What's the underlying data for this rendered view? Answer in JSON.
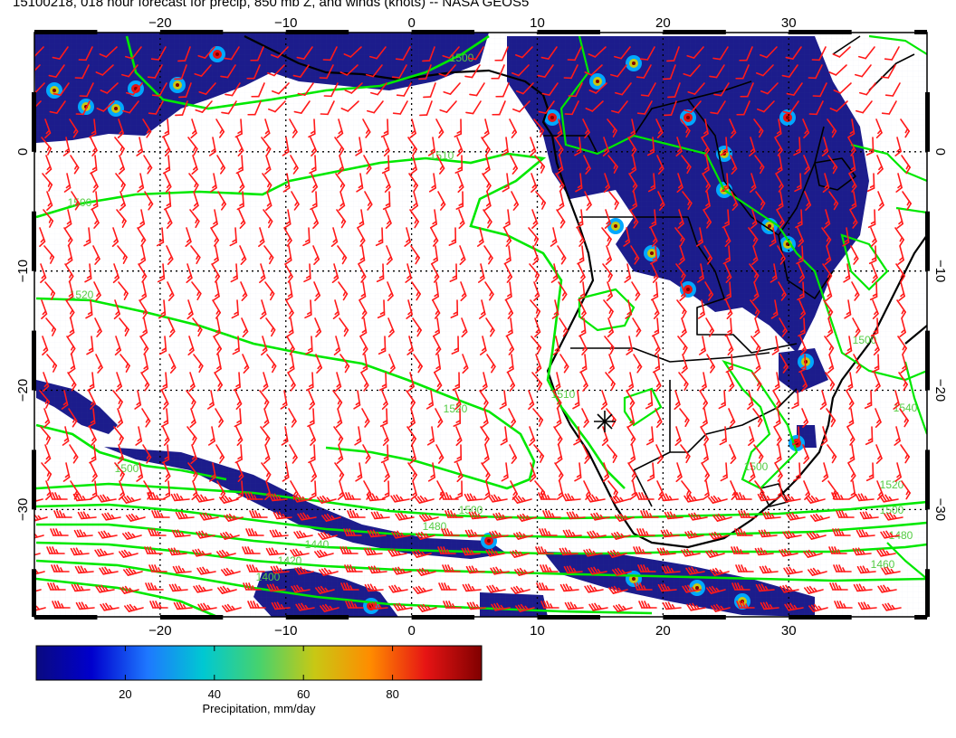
{
  "title": "15100218, 018 hour forecast for precip, 850 mb Z, and winds (knots) -- NASA GEOS5",
  "map": {
    "lon_range": [
      -30,
      41
    ],
    "lat_range": [
      -39,
      10
    ],
    "lon_tick_labels": [
      "-20",
      "-10",
      "0",
      "10",
      "20",
      "30"
    ],
    "lat_tick_labels": [
      "0",
      "-10",
      "-20",
      "-30"
    ],
    "gridlines": true,
    "contour_color": "#00e800",
    "wind_barb_color": "#ff1a1a",
    "coastline_color": "#000000",
    "contour_labels": [
      "1500",
      "1510",
      "1500",
      "1520",
      "1520",
      "1510",
      "1500",
      "1500",
      "1480",
      "1440",
      "1420",
      "1400",
      "1520",
      "1500",
      "1480",
      "1460",
      "1540",
      "1500",
      "1500"
    ],
    "precip_regions": [
      "North Atlantic ITCZ band",
      "Central Africa convection",
      "Southern storm track band"
    ],
    "wind_field": {
      "regions": [
        {
          "name": "north tropical",
          "dir": "southwesterly",
          "speed_kt": 10
        },
        {
          "name": "central atlantic",
          "dir": "southeasterly",
          "speed_kt": 15
        },
        {
          "name": "southern westerlies",
          "dir": "westerly",
          "speed_kt": 35
        }
      ]
    }
  },
  "colorbar": {
    "title": "Precipitation, mm/day",
    "range": [
      0,
      100
    ],
    "ticks": [
      20,
      40,
      60,
      80
    ],
    "tick_labels": [
      "20",
      "40",
      "60",
      "80"
    ],
    "colors": [
      "#0a0a80",
      "#0000cd",
      "#1e78ff",
      "#00c8d2",
      "#46d26e",
      "#c8c814",
      "#ff8c00",
      "#e61414",
      "#800000"
    ]
  }
}
